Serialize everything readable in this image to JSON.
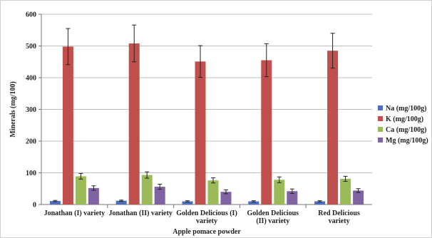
{
  "chart_data": {
    "type": "bar",
    "title": "",
    "xlabel": "Apple pomace powder",
    "ylabel": "Minerals (mg/100)",
    "ylim": [
      0,
      600
    ],
    "yticks": [
      0,
      100,
      200,
      300,
      400,
      500,
      600
    ],
    "grid": true,
    "legend_position": "right",
    "categories": [
      [
        "Jonathan (I) variety"
      ],
      [
        "Jonathan (II) variety"
      ],
      [
        "Golden Delicious (I)",
        "variety"
      ],
      [
        "Golden Delicious",
        "(II) variety"
      ],
      [
        "Red Delicious",
        "variety"
      ]
    ],
    "series": [
      {
        "name": "Na (mg/100g)",
        "color": "#4a6fbf",
        "values": [
          11,
          12,
          10,
          10,
          10
        ],
        "errors": [
          2,
          2,
          2,
          2,
          2
        ]
      },
      {
        "name": "K (mg/100g)",
        "color": "#c0504d",
        "values": [
          498,
          508,
          451,
          455,
          485
        ],
        "errors": [
          57,
          58,
          50,
          52,
          55
        ]
      },
      {
        "name": "Ca (mg/100g)",
        "color": "#9bbb59",
        "values": [
          89,
          93,
          76,
          78,
          81
        ],
        "errors": [
          9,
          10,
          8,
          9,
          8
        ]
      },
      {
        "name": "Mg (mg/100g)",
        "color": "#8064a2",
        "values": [
          52,
          56,
          40,
          42,
          44
        ],
        "errors": [
          7,
          8,
          6,
          7,
          6
        ]
      }
    ]
  }
}
